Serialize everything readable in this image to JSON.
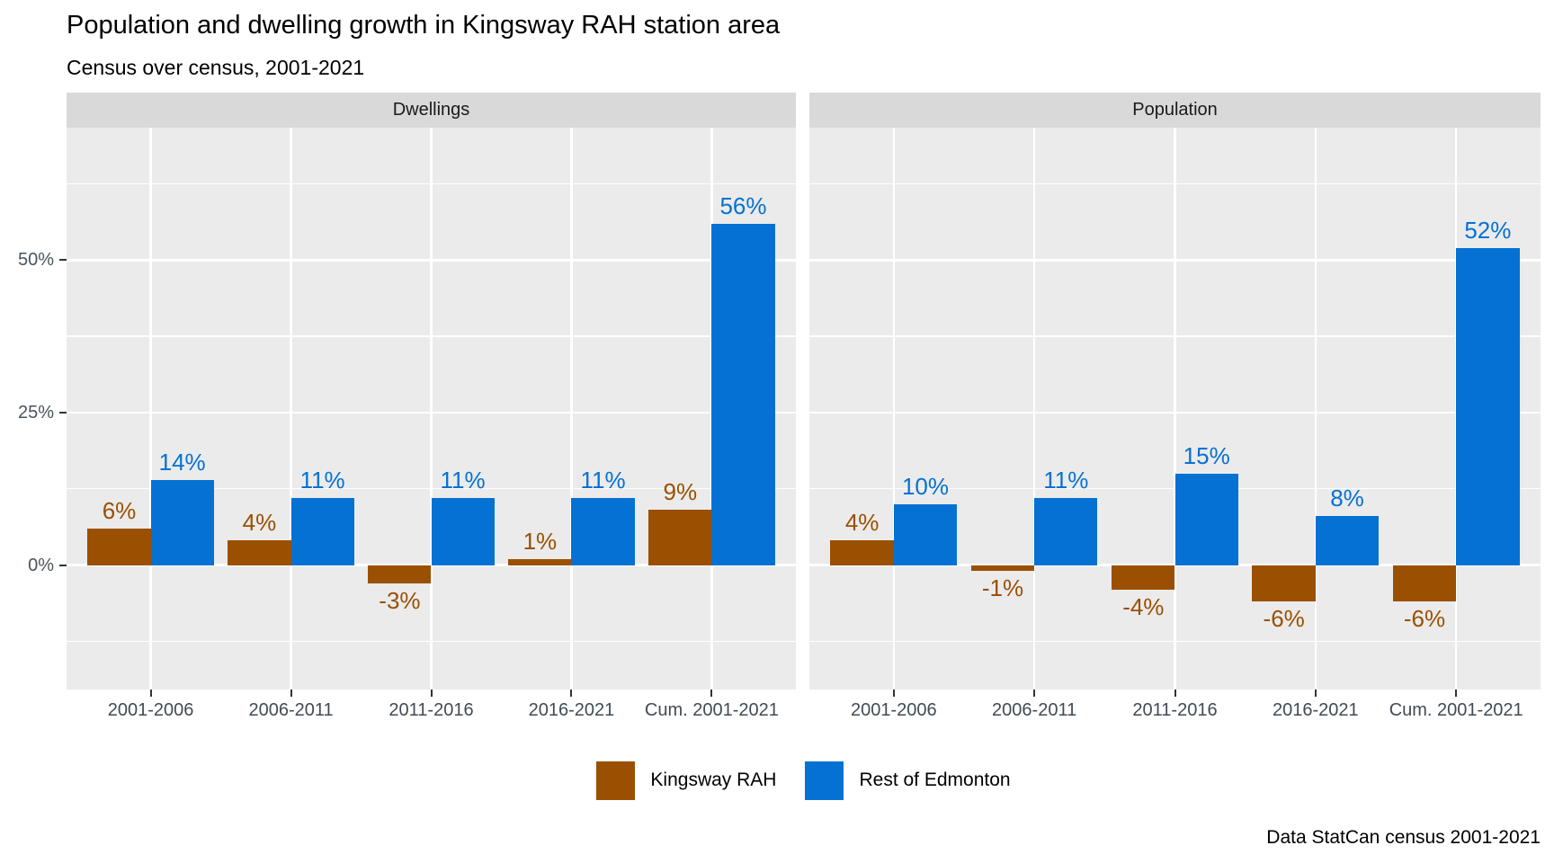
{
  "title": "Population and dwelling growth in Kingsway RAH station area",
  "subtitle": "Census over census, 2001-2021",
  "caption": "Data StatCan census 2001-2021",
  "legend": {
    "items": [
      {
        "label": "Kingsway RAH",
        "color": "#9A5000"
      },
      {
        "label": "Rest of Edmonton",
        "color": "#0571D3"
      }
    ]
  },
  "chart_data": {
    "type": "bar",
    "layout": "two-facet grouped bar chart, shared y axis, legend bottom, grid on",
    "categories": [
      "2001-2006",
      "2006-2011",
      "2011-2016",
      "2016-2021",
      "Cum. 2001-2021"
    ],
    "facets": [
      {
        "title": "Dwellings",
        "series": [
          {
            "name": "Kingsway RAH",
            "color": "#9A5000",
            "values": [
              6,
              4,
              -3,
              1,
              9
            ]
          },
          {
            "name": "Rest of Edmonton",
            "color": "#0571D3",
            "values": [
              14,
              11,
              11,
              11,
              56
            ]
          }
        ]
      },
      {
        "title": "Population",
        "series": [
          {
            "name": "Kingsway RAH",
            "color": "#9A5000",
            "values": [
              4,
              -1,
              -4,
              -6,
              -6
            ]
          },
          {
            "name": "Rest of Edmonton",
            "color": "#0571D3",
            "values": [
              10,
              11,
              15,
              8,
              52
            ]
          }
        ]
      }
    ],
    "value_suffix": "%",
    "y_axis": {
      "ticks": [
        {
          "label": "50%",
          "value": 50
        },
        {
          "label": "25%",
          "value": 25
        },
        {
          "label": "0%",
          "value": 0
        }
      ],
      "domain": [
        -20.4,
        71.7
      ],
      "major_gridlines": [
        0,
        25,
        50
      ],
      "minor_gridlines": [
        -12.5,
        12.5,
        37.5,
        62.5
      ]
    }
  }
}
